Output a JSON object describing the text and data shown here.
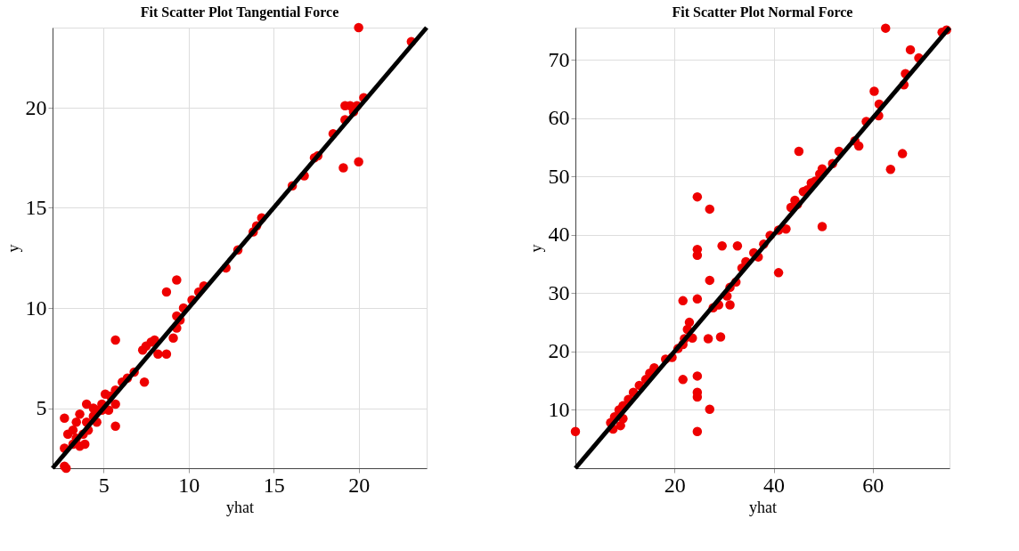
{
  "chart_data": [
    {
      "type": "scatter",
      "title": "Fit Scatter Plot Tangential Force",
      "xlabel": "yhat",
      "ylabel": "y",
      "xlim": [
        2,
        24
      ],
      "ylim": [
        2,
        24
      ],
      "xticks": [
        5,
        10,
        15,
        20
      ],
      "yticks": [
        5,
        10,
        15,
        20
      ],
      "grid": true,
      "series": [
        {
          "color": "#ee0000",
          "marker": "circle",
          "x": [
            2.7,
            2.8,
            2.7,
            20.0,
            23.1,
            19.2,
            19.5,
            19.9,
            20.3,
            19.2,
            19.7,
            19.1,
            20.0,
            18.5,
            17.4,
            17.6,
            16.8,
            16.1,
            14.3,
            14.0,
            13.8,
            12.9,
            12.2,
            10.9,
            10.6,
            10.2,
            9.7,
            9.3,
            9.3,
            8.7,
            9.3,
            9.5,
            9.1,
            8.7,
            8.2,
            8.0,
            7.5,
            7.3,
            7.8,
            7.4,
            6.8,
            6.4,
            6.1,
            5.7,
            5.4,
            5.7,
            5.7,
            5.7,
            5.1,
            4.9,
            4.6,
            4.4,
            4.0,
            4.0,
            3.6,
            3.4,
            3.2,
            2.9,
            3.9,
            3.6,
            3.2,
            4.1,
            4.6,
            4.4,
            4.9,
            5.3,
            3.4,
            3.8,
            2.7
          ],
          "values": [
            2.1,
            2.0,
            4.5,
            24.0,
            23.3,
            20.1,
            20.1,
            20.1,
            20.5,
            19.4,
            19.8,
            17.0,
            17.3,
            18.7,
            17.5,
            17.6,
            16.6,
            16.1,
            14.5,
            14.1,
            13.8,
            12.9,
            12.0,
            11.1,
            10.8,
            10.4,
            10.0,
            9.6,
            11.4,
            10.8,
            9.0,
            9.4,
            8.5,
            7.7,
            7.7,
            8.4,
            8.1,
            7.9,
            8.3,
            6.3,
            6.8,
            6.5,
            6.3,
            5.9,
            5.6,
            8.4,
            5.2,
            4.1,
            5.7,
            5.2,
            4.9,
            5.0,
            5.2,
            4.3,
            4.7,
            4.3,
            3.9,
            3.7,
            3.2,
            3.1,
            3.2,
            3.9,
            4.3,
            4.6,
            4.9,
            4.9,
            3.5,
            3.7,
            3.0
          ]
        },
        {
          "type": "line",
          "color": "#000000",
          "x": [
            2,
            24
          ],
          "values": [
            2,
            24
          ]
        }
      ]
    },
    {
      "type": "scatter",
      "title": "Fit Scatter Plot Normal Force",
      "xlabel": "yhat",
      "ylabel": "y",
      "xlim": [
        0,
        75.5
      ],
      "ylim": [
        0,
        75.5
      ],
      "xticks": [
        20,
        40,
        60
      ],
      "yticks": [
        10,
        20,
        30,
        40,
        50,
        60,
        70
      ],
      "grid": true,
      "series": [
        {
          "color": "#ee0000",
          "marker": "circle",
          "x": [
            0,
            62.6,
            74.0,
            74.9,
            67.6,
            69.3,
            66.6,
            66.3,
            66.0,
            63.6,
            60.3,
            61.3,
            61.2,
            58.7,
            53.2,
            56.4,
            57.2,
            45.1,
            44.8,
            49.8,
            51.9,
            49.3,
            47.6,
            46.0,
            46.8,
            48.4,
            44.3,
            43.5,
            49.8,
            42.5,
            41.0,
            39.3,
            41.0,
            38.0,
            36.0,
            36.9,
            34.4,
            33.6,
            29.6,
            32.7,
            32.4,
            31.2,
            30.6,
            31.2,
            28.9,
            27.8,
            27.1,
            24.6,
            21.7,
            23.0,
            22.6,
            23.6,
            22.0,
            26.8,
            29.3,
            21.7,
            20.7,
            19.5,
            18.2,
            21.7,
            24.6,
            24.6,
            24.6,
            27.1,
            24.6,
            24.6,
            24.6,
            24.6,
            27.1,
            15.9,
            15.0,
            14.2,
            12.9,
            11.7,
            10.7,
            9.6,
            8.8,
            7.9,
            7.1,
            9.1,
            7.6,
            9.6
          ],
          "values": [
            6.3,
            75.4,
            74.7,
            75.1,
            71.7,
            70.3,
            67.6,
            65.7,
            53.9,
            51.2,
            64.6,
            62.4,
            60.4,
            59.4,
            54.3,
            56.1,
            55.2,
            54.3,
            45.2,
            51.3,
            52.2,
            50.4,
            48.9,
            47.4,
            47.7,
            49.2,
            45.9,
            44.7,
            41.4,
            41.0,
            40.8,
            39.9,
            33.5,
            38.4,
            36.9,
            36.2,
            35.4,
            34.3,
            38.1,
            38.1,
            31.9,
            31.0,
            29.5,
            28.0,
            28.0,
            27.5,
            32.2,
            29.0,
            28.7,
            25.0,
            23.8,
            22.3,
            22.2,
            22.2,
            22.5,
            21.2,
            20.5,
            19.0,
            18.7,
            15.2,
            15.8,
            13.0,
            12.2,
            10.1,
            6.3,
            46.5,
            37.5,
            36.5,
            44.4,
            17.2,
            16.3,
            15.2,
            14.2,
            13.0,
            11.8,
            10.7,
            10.0,
            8.8,
            7.8,
            7.3,
            6.7,
            8.5
          ]
        },
        {
          "type": "line",
          "color": "#000000",
          "x": [
            0,
            75.5
          ],
          "values": [
            0,
            75.5
          ]
        }
      ]
    }
  ]
}
